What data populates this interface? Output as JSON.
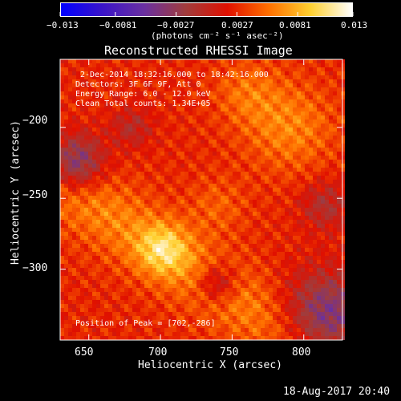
{
  "colorbar": {
    "tick_labels": [
      "−0.013",
      "−0.0081",
      "−0.0027",
      "0.0027",
      "0.0081",
      "0.013"
    ],
    "ticks": [
      -0.013,
      -0.0081,
      -0.0027,
      0.0027,
      0.0081,
      0.013
    ],
    "range": [
      -0.013,
      0.013
    ],
    "unit_label": "(photons cm⁻² s⁻¹ asec⁻²)",
    "colormap": [
      "#0000ff",
      "#3a14c8",
      "#6a30a0",
      "#a03c3c",
      "#e01000",
      "#ff7000",
      "#ffd030",
      "#ffffff"
    ]
  },
  "title": "Reconstructed RHESSI Image",
  "annotations": {
    "time": "2-Dec-2014 18:32:16.000 to 18:42:16.000",
    "detectors": "Detectors: 3F 6F 9F, Att 0",
    "energy": "Energy Range: 6.0 - 12.0 keV",
    "clean": "Clean    Total counts: 1.34E+05",
    "peak": "Position of Peak = [702,-286]"
  },
  "footer": {
    "timestamp": "18-Aug-2017 20:40"
  },
  "chart_data": {
    "type": "heatmap",
    "xlabel": "Heliocentric X (arcsec)",
    "ylabel": "Heliocentric Y (arcsec)",
    "xlim": [
      630,
      827
    ],
    "ylim": [
      -350,
      -152
    ],
    "xticks": [
      650,
      700,
      750,
      800
    ],
    "xtick_labels": [
      "650",
      "700",
      "750",
      "800"
    ],
    "yticks": [
      -200,
      -250,
      -300
    ],
    "ytick_labels": [
      "−200",
      "−250",
      "−300"
    ],
    "peak": [
      702,
      -286
    ]
  }
}
